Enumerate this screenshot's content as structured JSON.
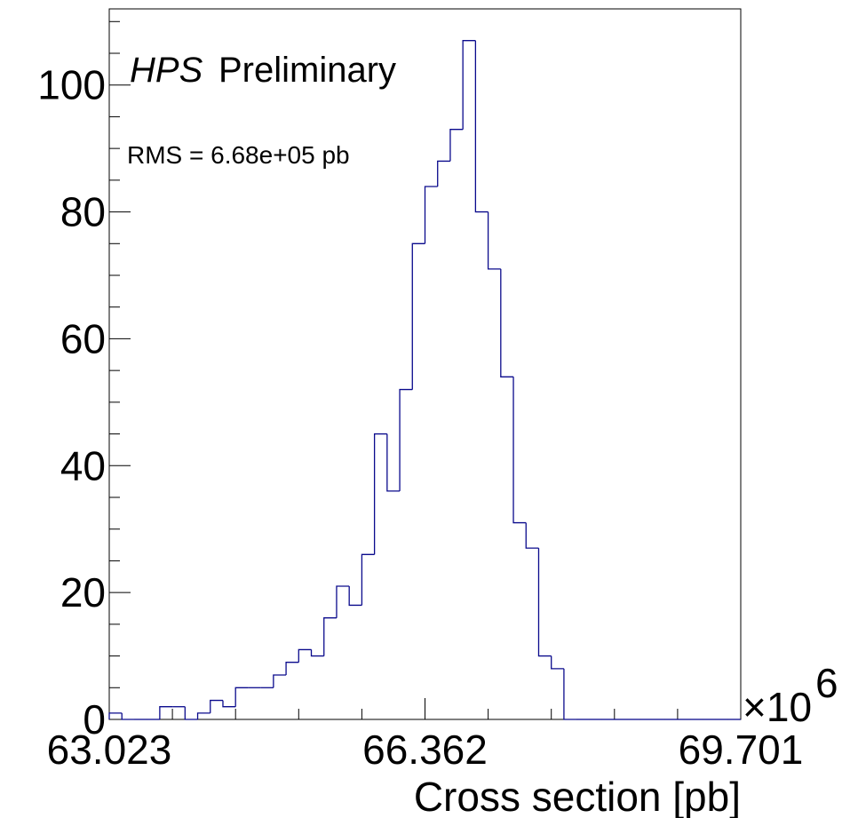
{
  "chart_data": {
    "type": "bar",
    "style": "step-histogram",
    "annotations": {
      "experiment": "HPS",
      "status": "Preliminary",
      "rms": "RMS = 6.68e+05 pb"
    },
    "xlabel": "Cross section [pb]",
    "ylabel": "",
    "x_multiplier_label": "×10",
    "x_multiplier_exponent": "6",
    "x_scale": 1000000,
    "xlim": [
      63.023,
      69.701
    ],
    "ylim": [
      0,
      112
    ],
    "x_tick_labels": [
      {
        "value": 63.023,
        "label": "63.023"
      },
      {
        "value": 66.362,
        "label": "66.362"
      },
      {
        "value": 69.701,
        "label": "69.701"
      }
    ],
    "y_tick_labels": [
      {
        "value": 0,
        "label": "0"
      },
      {
        "value": 20,
        "label": "20"
      },
      {
        "value": 40,
        "label": "40"
      },
      {
        "value": 60,
        "label": "60"
      },
      {
        "value": 80,
        "label": "80"
      },
      {
        "value": 100,
        "label": "100"
      }
    ],
    "bin_count": 50,
    "bin_width": 0.13356,
    "values": [
      1,
      0,
      0,
      0,
      2,
      2,
      0,
      1,
      3,
      2,
      5,
      5,
      5,
      7,
      9,
      11,
      10,
      16,
      21,
      18,
      26,
      45,
      36,
      52,
      75,
      84,
      88,
      93,
      107,
      80,
      71,
      54,
      31,
      27,
      10,
      8,
      0,
      0,
      0,
      0,
      0,
      0,
      0,
      0,
      0,
      0,
      0,
      0,
      0,
      0
    ],
    "line_color": "#0a0a8c",
    "grid": false,
    "legend": "none"
  }
}
